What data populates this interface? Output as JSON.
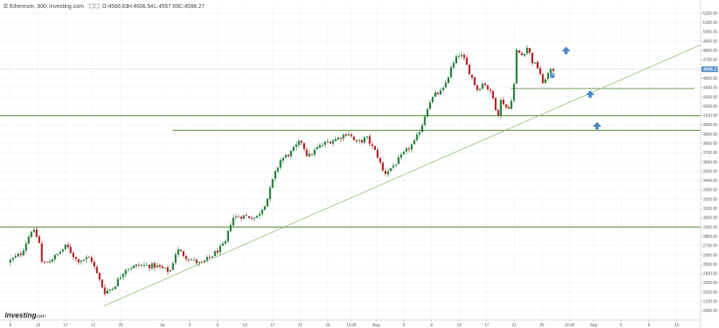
{
  "header": {
    "symbol": "Ethereum, 300, Investing.com",
    "ohlc": [
      "O:4586.83",
      "H:4606.54",
      "L:4557.69",
      "C:4598.27"
    ]
  },
  "logo": {
    "name": "Investing",
    "suffix": ".com"
  },
  "colors": {
    "up": "#1e7b37",
    "down": "#b01d1d",
    "grid": "#eef1f5",
    "level": "#6f9a55",
    "trend": "#8fb86e",
    "arrow": "#4a86c5",
    "price_tag": "#4a86c5"
  },
  "chart_data": {
    "type": "candlestick",
    "title": "",
    "xlabel": "",
    "ylabel": "",
    "ylim": [
      1900,
      5300
    ],
    "y_ticks": [
      "2000.00",
      "2100.00",
      "2200.00",
      "2300.00",
      "2400.00",
      "2500.00",
      "2600.00",
      "2700.00",
      "2800.00",
      "2900.00",
      "3000.00",
      "3100.00",
      "3200.00",
      "3300.00",
      "3400.00",
      "3500.00",
      "3600.00",
      "3700.00",
      "3800.00",
      "3900.00",
      "4000.00",
      "4100.00",
      "4200.00",
      "4300.00",
      "4400.00",
      "4500.00",
      "4600.00",
      "4700.00",
      "4800.00",
      "4900.00",
      "5000.00",
      "5100.00",
      "5200.00"
    ],
    "x_ticks": [
      {
        "label": "9",
        "t": 0.0
      },
      {
        "label": "13",
        "t": 4.0
      },
      {
        "label": "17",
        "t": 8.0
      },
      {
        "label": "21",
        "t": 12.0
      },
      {
        "label": "25",
        "t": 16.0
      },
      {
        "label": "Jul",
        "t": 22.0
      },
      {
        "label": "5",
        "t": 26.0
      },
      {
        "label": "9",
        "t": 30.0
      },
      {
        "label": "13",
        "t": 34.0
      },
      {
        "label": "17",
        "t": 38.0
      },
      {
        "label": "21",
        "t": 42.0
      },
      {
        "label": "25",
        "t": 46.0
      },
      {
        "label": "13:00",
        "t": 49.4
      },
      {
        "label": "Aug",
        "t": 53.0
      },
      {
        "label": "5",
        "t": 57.0
      },
      {
        "label": "9",
        "t": 61.0
      },
      {
        "label": "13",
        "t": 65.0
      },
      {
        "label": "17",
        "t": 69.0
      },
      {
        "label": "21",
        "t": 73.0
      },
      {
        "label": "25",
        "t": 77.0
      },
      {
        "label": "16:00",
        "t": 81.0
      },
      {
        "label": "Sep",
        "t": 84.5
      },
      {
        "label": "5",
        "t": 88.5
      },
      {
        "label": "9",
        "t": 92.5
      },
      {
        "label": "13",
        "t": 96.5
      }
    ],
    "price_path": [
      [
        0,
        2520
      ],
      [
        2,
        2620
      ],
      [
        3.5,
        2880
      ],
      [
        4.5,
        2760
      ],
      [
        5,
        2490
      ],
      [
        7,
        2590
      ],
      [
        8.5,
        2700
      ],
      [
        10,
        2540
      ],
      [
        12,
        2570
      ],
      [
        13,
        2380
      ],
      [
        14,
        2200
      ],
      [
        15.3,
        2250
      ],
      [
        17,
        2450
      ],
      [
        19,
        2490
      ],
      [
        21.5,
        2480
      ],
      [
        23.5,
        2420
      ],
      [
        24.5,
        2660
      ],
      [
        26,
        2570
      ],
      [
        28,
        2500
      ],
      [
        30,
        2620
      ],
      [
        31.5,
        2720
      ],
      [
        32.5,
        3000
      ],
      [
        34,
        3020
      ],
      [
        36,
        3000
      ],
      [
        37.5,
        3180
      ],
      [
        38.5,
        3430
      ],
      [
        39.5,
        3620
      ],
      [
        41,
        3700
      ],
      [
        42.5,
        3830
      ],
      [
        43.5,
        3650
      ],
      [
        45,
        3760
      ],
      [
        46.5,
        3820
      ],
      [
        48,
        3860
      ],
      [
        49.3,
        3920
      ],
      [
        50.5,
        3800
      ],
      [
        52,
        3860
      ],
      [
        53.5,
        3680
      ],
      [
        54.5,
        3470
      ],
      [
        56,
        3570
      ],
      [
        57.5,
        3700
      ],
      [
        59,
        3820
      ],
      [
        60,
        4000
      ],
      [
        61,
        4240
      ],
      [
        62,
        4330
      ],
      [
        63,
        4360
      ],
      [
        64.2,
        4600
      ],
      [
        65.3,
        4760
      ],
      [
        66,
        4720
      ],
      [
        67,
        4550
      ],
      [
        68,
        4380
      ],
      [
        69,
        4460
      ],
      [
        70.2,
        4310
      ],
      [
        71,
        4100
      ],
      [
        71.5,
        4280
      ],
      [
        72.5,
        4150
      ],
      [
        73.3,
        4380
      ],
      [
        73.6,
        4800
      ],
      [
        74.5,
        4750
      ],
      [
        75.3,
        4840
      ],
      [
        76,
        4680
      ],
      [
        77,
        4600
      ],
      [
        77.5,
        4420
      ],
      [
        78,
        4530
      ],
      [
        79,
        4598
      ]
    ],
    "levels": [
      4390,
      4100,
      3940,
      2900
    ],
    "trendline": [
      [
        13.5,
        2050
      ],
      [
        100,
        4860
      ]
    ],
    "last_price": "4598.27",
    "annotations": {
      "arrows_up": [
        [
          80.5,
          4790
        ],
        [
          84.0,
          4320
        ],
        [
          85.0,
          3980
        ]
      ],
      "marker": [
        78.5,
        4530
      ]
    },
    "legend": "none",
    "grid": true
  }
}
